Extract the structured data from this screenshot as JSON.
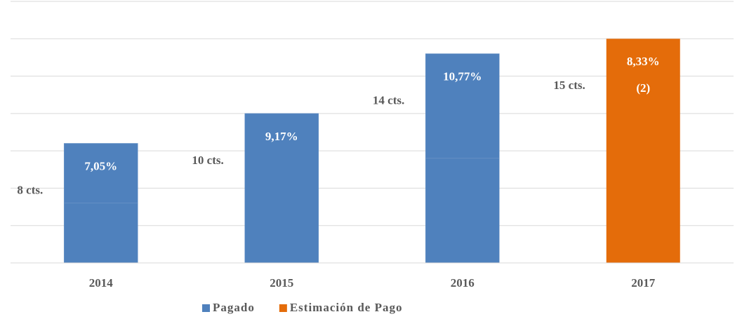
{
  "chart_data": {
    "type": "bar",
    "stacked": true,
    "categories": [
      "2014",
      "2015",
      "2016",
      "2017"
    ],
    "series": [
      {
        "name": "Pagado",
        "color": "#4f81bd",
        "values": [
          4,
          10,
          7,
          null
        ]
      },
      {
        "color": "#4f81bd",
        "values": [
          4,
          null,
          7,
          null
        ]
      },
      {
        "name": "Estimación de Pago",
        "color": "#e46c0a",
        "values": [
          null,
          null,
          null,
          15
        ]
      }
    ],
    "total_labels": [
      "8 cts.",
      "10 cts.",
      "14 cts.",
      "15 cts."
    ],
    "percent_labels": [
      "7,05%",
      "9,17%",
      "10,77%",
      "8,33%"
    ],
    "note_2017": "(2)",
    "ylim": [
      0,
      17.5
    ],
    "yticks": [
      0,
      2.5,
      5,
      7.5,
      10,
      12.5,
      15,
      17.5
    ],
    "grid": true,
    "legend": "bottom"
  }
}
